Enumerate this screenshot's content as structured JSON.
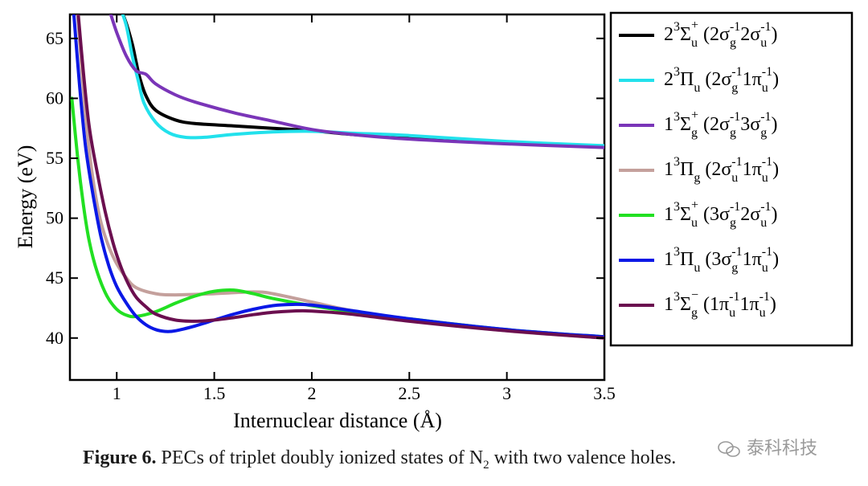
{
  "chart_data": {
    "type": "line",
    "xlabel": "Internuclear distance (Å)",
    "ylabel": "Energy (eV)",
    "xlim": [
      0.76,
      3.5
    ],
    "ylim": [
      36.5,
      67
    ],
    "x_ticks": [
      1,
      1.5,
      2,
      2.5,
      3,
      3.5
    ],
    "x_tick_labels": [
      "1",
      "1.5",
      "2",
      "2.5",
      "3",
      "3.5"
    ],
    "y_ticks": [
      40,
      45,
      50,
      55,
      60,
      65
    ],
    "y_tick_labels": [
      "40",
      "45",
      "50",
      "55",
      "60",
      "65"
    ],
    "legend_position": "outside-right",
    "series": [
      {
        "name": "2³Σu⁺ (2σg⁻¹2σu⁻¹)",
        "legend_parts": {
          "n": "2",
          "sym": "Σ",
          "sub": "u",
          "sup": "+",
          "orb": "(2σg⁻¹2σu⁻¹)"
        },
        "color": "#000000",
        "points": [
          [
            1.02,
            67.5
          ],
          [
            1.05,
            66.2
          ],
          [
            1.08,
            64.5
          ],
          [
            1.1,
            63.0
          ],
          [
            1.12,
            61.6
          ],
          [
            1.15,
            60.2
          ],
          [
            1.2,
            59.0
          ],
          [
            1.3,
            58.2
          ],
          [
            1.4,
            57.9
          ],
          [
            1.6,
            57.7
          ],
          [
            1.8,
            57.5
          ],
          [
            2.0,
            57.3
          ],
          [
            2.2,
            57.0
          ],
          [
            2.5,
            56.7
          ],
          [
            3.0,
            56.3
          ],
          [
            3.5,
            56.0
          ]
        ]
      },
      {
        "name": "2³Πu (2σg⁻¹1πu⁻¹)",
        "legend_parts": {
          "n": "2",
          "sym": "Π",
          "sub": "u",
          "sup": "",
          "orb": "(2σg⁻¹1πu⁻¹)"
        },
        "color": "#22e1ec",
        "points": [
          [
            1.02,
            67.5
          ],
          [
            1.05,
            66.0
          ],
          [
            1.08,
            63.5
          ],
          [
            1.11,
            61.5
          ],
          [
            1.14,
            59.6
          ],
          [
            1.2,
            58.0
          ],
          [
            1.27,
            57.1
          ],
          [
            1.35,
            56.75
          ],
          [
            1.45,
            56.75
          ],
          [
            1.6,
            57.0
          ],
          [
            1.8,
            57.2
          ],
          [
            2.0,
            57.25
          ],
          [
            2.2,
            57.1
          ],
          [
            2.5,
            56.9
          ],
          [
            3.0,
            56.4
          ],
          [
            3.5,
            56.05
          ]
        ]
      },
      {
        "name": "1³Σg⁺ (2σg⁻¹3σg⁻¹)",
        "legend_parts": {
          "n": "1",
          "sym": "Σ",
          "sub": "g",
          "sup": "+",
          "orb": "(2σg⁻¹3σg⁻¹)"
        },
        "color": "#7a35b8",
        "points": [
          [
            0.96,
            67.5
          ],
          [
            1.0,
            65.5
          ],
          [
            1.05,
            63.5
          ],
          [
            1.1,
            62.3
          ],
          [
            1.15,
            62.0
          ],
          [
            1.2,
            61.2
          ],
          [
            1.3,
            60.3
          ],
          [
            1.4,
            59.7
          ],
          [
            1.6,
            58.8
          ],
          [
            1.8,
            58.1
          ],
          [
            2.0,
            57.4
          ],
          [
            2.2,
            57.0
          ],
          [
            2.5,
            56.6
          ],
          [
            3.0,
            56.2
          ],
          [
            3.5,
            55.9
          ]
        ]
      },
      {
        "name": "1³Πg (2σu⁻¹1πu⁻¹)",
        "legend_parts": {
          "n": "1",
          "sym": "Π",
          "sub": "g",
          "sup": "",
          "orb": "(2σu⁻¹1πu⁻¹)"
        },
        "color": "#c4a09c",
        "points": [
          [
            0.8,
            67.0
          ],
          [
            0.83,
            60.5
          ],
          [
            0.86,
            55.5
          ],
          [
            0.89,
            52.0
          ],
          [
            0.92,
            49.6
          ],
          [
            0.96,
            47.6
          ],
          [
            1.0,
            46.2
          ],
          [
            1.05,
            45.0
          ],
          [
            1.1,
            44.2
          ],
          [
            1.2,
            43.7
          ],
          [
            1.3,
            43.6
          ],
          [
            1.5,
            43.7
          ],
          [
            1.7,
            43.85
          ],
          [
            1.8,
            43.7
          ],
          [
            2.0,
            43.0
          ],
          [
            2.2,
            42.3
          ],
          [
            2.5,
            41.5
          ],
          [
            3.0,
            40.6
          ],
          [
            3.5,
            40.0
          ]
        ]
      },
      {
        "name": "1³Σu⁺ (3σg⁻¹2σu⁻¹)",
        "legend_parts": {
          "n": "1",
          "sym": "Σ",
          "sub": "u",
          "sup": "+",
          "orb": "(3σg⁻¹2σu⁻¹)"
        },
        "color": "#22e022",
        "points": [
          [
            0.77,
            60.0
          ],
          [
            0.8,
            55.0
          ],
          [
            0.83,
            51.0
          ],
          [
            0.86,
            48.0
          ],
          [
            0.9,
            45.5
          ],
          [
            0.95,
            43.5
          ],
          [
            1.0,
            42.4
          ],
          [
            1.05,
            41.9
          ],
          [
            1.1,
            41.8
          ],
          [
            1.2,
            42.2
          ],
          [
            1.3,
            42.9
          ],
          [
            1.4,
            43.5
          ],
          [
            1.5,
            43.9
          ],
          [
            1.6,
            44.0
          ],
          [
            1.7,
            43.7
          ],
          [
            1.8,
            43.3
          ],
          [
            2.0,
            42.7
          ],
          [
            2.2,
            42.2
          ],
          [
            2.5,
            41.6
          ],
          [
            3.0,
            40.7
          ],
          [
            3.5,
            40.1
          ]
        ]
      },
      {
        "name": "1³Πu (3σg⁻¹1πu⁻¹)",
        "legend_parts": {
          "n": "1",
          "sym": "Π",
          "sub": "u",
          "sup": "",
          "orb": "(3σg⁻¹1πu⁻¹)"
        },
        "color": "#0a18e6",
        "points": [
          [
            0.78,
            67.0
          ],
          [
            0.81,
            61.0
          ],
          [
            0.84,
            56.0
          ],
          [
            0.88,
            51.8
          ],
          [
            0.92,
            48.4
          ],
          [
            0.96,
            46.0
          ],
          [
            1.0,
            44.3
          ],
          [
            1.05,
            42.9
          ],
          [
            1.1,
            41.8
          ],
          [
            1.15,
            41.1
          ],
          [
            1.2,
            40.7
          ],
          [
            1.25,
            40.55
          ],
          [
            1.3,
            40.6
          ],
          [
            1.4,
            41.0
          ],
          [
            1.5,
            41.5
          ],
          [
            1.6,
            42.0
          ],
          [
            1.7,
            42.4
          ],
          [
            1.8,
            42.7
          ],
          [
            1.9,
            42.8
          ],
          [
            2.0,
            42.75
          ],
          [
            2.2,
            42.3
          ],
          [
            2.5,
            41.6
          ],
          [
            3.0,
            40.7
          ],
          [
            3.5,
            40.1
          ]
        ]
      },
      {
        "name": "1³Σg⁻ (1πu⁻¹1πu⁻¹)",
        "legend_parts": {
          "n": "1",
          "sym": "Σ",
          "sub": "g",
          "sup": "−",
          "orb": "(1πu⁻¹1πu⁻¹)"
        },
        "color": "#6b0f4f",
        "points": [
          [
            0.8,
            67.5
          ],
          [
            0.83,
            62.0
          ],
          [
            0.86,
            57.5
          ],
          [
            0.9,
            53.8
          ],
          [
            0.94,
            50.6
          ],
          [
            0.98,
            48.0
          ],
          [
            1.02,
            46.0
          ],
          [
            1.06,
            44.5
          ],
          [
            1.1,
            43.4
          ],
          [
            1.15,
            42.6
          ],
          [
            1.2,
            42.0
          ],
          [
            1.3,
            41.5
          ],
          [
            1.4,
            41.4
          ],
          [
            1.5,
            41.5
          ],
          [
            1.6,
            41.7
          ],
          [
            1.7,
            41.95
          ],
          [
            1.8,
            42.15
          ],
          [
            1.9,
            42.25
          ],
          [
            2.0,
            42.25
          ],
          [
            2.2,
            42.0
          ],
          [
            2.5,
            41.4
          ],
          [
            3.0,
            40.6
          ],
          [
            3.5,
            40.0
          ]
        ]
      }
    ]
  },
  "caption": {
    "label": "Figure 6.",
    "text": "PECs of triplet doubly ionized states of N",
    "subscript": "2",
    "text_after": "with two valence holes."
  },
  "watermark": {
    "text": "泰科科技"
  },
  "colors": {
    "axis": "#000000",
    "background": "#ffffff",
    "caption_text": "#1a1a1a",
    "watermark": "#9a9a9a"
  }
}
